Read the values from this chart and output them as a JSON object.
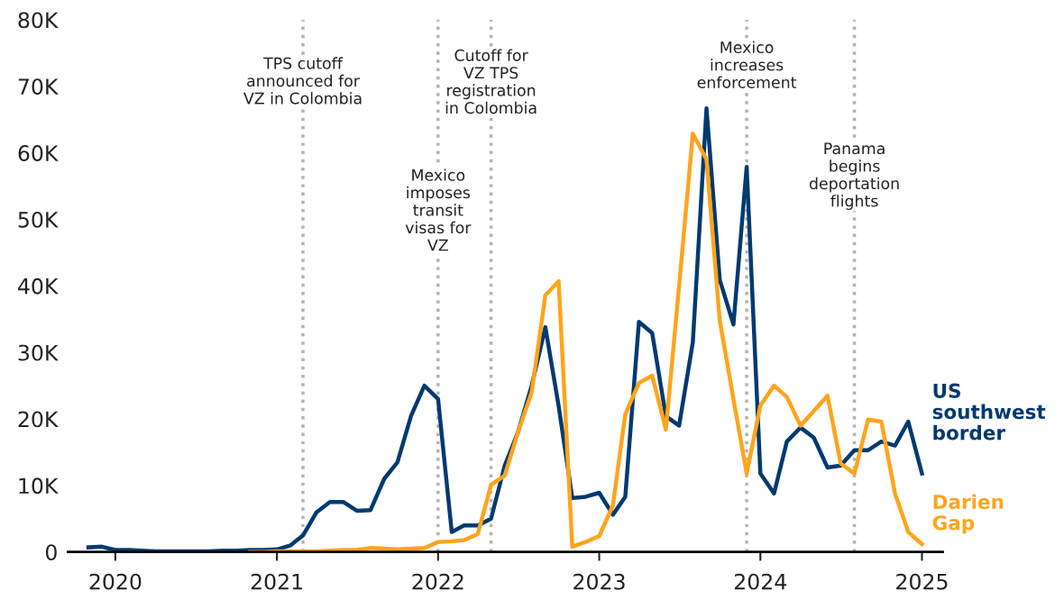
{
  "chart_data": {
    "type": "line",
    "x": [
      "2019-11",
      "2019-12",
      "2020-01",
      "2020-02",
      "2020-03",
      "2020-04",
      "2020-05",
      "2020-06",
      "2020-07",
      "2020-08",
      "2020-09",
      "2020-10",
      "2020-11",
      "2020-12",
      "2021-01",
      "2021-02",
      "2021-03",
      "2021-04",
      "2021-05",
      "2021-06",
      "2021-07",
      "2021-08",
      "2021-09",
      "2021-10",
      "2021-11",
      "2021-12",
      "2022-01",
      "2022-02",
      "2022-03",
      "2022-04",
      "2022-05",
      "2022-06",
      "2022-07",
      "2022-08",
      "2022-09",
      "2022-10",
      "2022-11",
      "2022-12",
      "2023-01",
      "2023-02",
      "2023-03",
      "2023-04",
      "2023-05",
      "2023-06",
      "2023-07",
      "2023-08",
      "2023-09",
      "2023-10",
      "2023-11",
      "2023-12",
      "2024-01",
      "2024-02",
      "2024-03",
      "2024-04",
      "2024-05",
      "2024-06",
      "2024-07",
      "2024-08",
      "2024-09",
      "2024-10",
      "2024-11",
      "2024-12",
      "2025-01"
    ],
    "series": [
      {
        "name": "US southwest border",
        "color": "#003a70",
        "values": [
          700,
          800,
          300,
          300,
          200,
          100,
          100,
          100,
          100,
          100,
          200,
          200,
          300,
          300,
          400,
          1000,
          2500,
          6000,
          7500,
          7500,
          6200,
          6300,
          11000,
          13500,
          20500,
          25000,
          23000,
          3000,
          4000,
          4000,
          5000,
          13000,
          18000,
          25000,
          33800,
          22000,
          8100,
          8300,
          8900,
          5600,
          8300,
          34600,
          32900,
          20400,
          19000,
          31500,
          66700,
          40900,
          34200,
          57900,
          11800,
          8800,
          16600,
          18700,
          17200,
          12700,
          13000,
          15300,
          15300,
          16600,
          16000,
          19600,
          11800
        ]
      },
      {
        "name": "Darien Gap",
        "color": "#ffa41c",
        "values": [
          null,
          null,
          null,
          null,
          null,
          null,
          null,
          null,
          null,
          null,
          null,
          null,
          0,
          0,
          100,
          100,
          100,
          100,
          200,
          300,
          300,
          600,
          500,
          400,
          500,
          600,
          1500,
          1600,
          1800,
          2700,
          10100,
          11500,
          18000,
          24000,
          38600,
          40700,
          800,
          1500,
          2400,
          7000,
          20700,
          25400,
          26500,
          18400,
          40000,
          62900,
          59000,
          34800,
          23000,
          11800,
          22000,
          25000,
          23300,
          19000,
          21200,
          23500,
          13300,
          11800,
          19900,
          19600,
          8800,
          3000,
          1200
        ]
      }
    ],
    "xlim": [
      "2019-09-16",
      "2025-02-17"
    ],
    "xticks": [
      {
        "value": "2020",
        "label": "2020"
      },
      {
        "value": "2021",
        "label": "2021"
      },
      {
        "value": "2022",
        "label": "2022"
      },
      {
        "value": "2023",
        "label": "2023"
      },
      {
        "value": "2024",
        "label": "2024"
      },
      {
        "value": "2025",
        "label": "2025"
      }
    ],
    "ylim": [
      0,
      80000
    ],
    "yticks": [
      0,
      {
        "value": 10000,
        "label": "10K"
      },
      {
        "value": 20000,
        "label": "20K"
      },
      {
        "value": 30000,
        "label": "30K"
      },
      {
        "value": 40000,
        "label": "40K"
      },
      {
        "value": 50000,
        "label": "50K"
      },
      {
        "value": 60000,
        "label": "60K"
      },
      {
        "value": 70000,
        "label": "70K"
      },
      {
        "value": 80000,
        "label": "80K"
      }
    ],
    "ref_lines": [
      {
        "axis": "x",
        "value": "2021-03",
        "label": "TPS cutoff\nannounced for\nVZ in Colombia",
        "color": "#b3b3b3",
        "line_style": "dotted"
      },
      {
        "axis": "x",
        "value": "2022-01",
        "label": "Mexico\nimposes\ntransit\nvisas for\nVZ",
        "color": "#b3b3b3",
        "line_style": "dotted"
      },
      {
        "axis": "x",
        "value": "2022-05",
        "label": "Cutoff for\nVZ TPS\nregistration\nin Colombia",
        "color": "#b3b3b3",
        "line_style": "dotted"
      },
      {
        "axis": "x",
        "value": "2023-12",
        "label": "Mexico\nincreases\nenforcement",
        "color": "#b3b3b3",
        "line_style": "dotted"
      },
      {
        "axis": "x",
        "value": "2024-08",
        "label": "Panama\nbegins\ndeportation\nflights",
        "color": "#b3b3b3",
        "line_style": "dotted"
      }
    ],
    "grid": false,
    "legend": false,
    "marker": "none",
    "line_style": "solid"
  }
}
